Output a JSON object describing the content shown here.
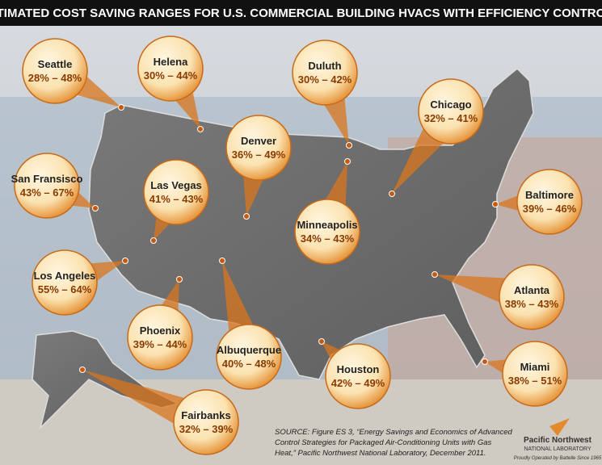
{
  "header": {
    "title": "ESTIMATED COST SAVING RANGES FOR U.S. COMMERCIAL BUILDING HVACS WITH EFFICIENCY CONTROLS"
  },
  "callouts": [
    {
      "city": "Seattle",
      "range": "28% – 48%"
    },
    {
      "city": "Helena",
      "range": "30% – 44%"
    },
    {
      "city": "Duluth",
      "range": "30% – 42%"
    },
    {
      "city": "Chicago",
      "range": "32% – 41%"
    },
    {
      "city": "Denver",
      "range": "36% – 49%"
    },
    {
      "city": "San Fransisco",
      "range": "43% – 67%"
    },
    {
      "city": "Las Vegas",
      "range": "41% – 43%"
    },
    {
      "city": "Minneapolis",
      "range": "34% – 43%"
    },
    {
      "city": "Baltimore",
      "range": "39% – 46%"
    },
    {
      "city": "Los Angeles",
      "range": "55% – 64%"
    },
    {
      "city": "Atlanta",
      "range": "38% – 43%"
    },
    {
      "city": "Phoenix",
      "range": "39% – 44%"
    },
    {
      "city": "Albuquerque",
      "range": "40% – 48%"
    },
    {
      "city": "Houston",
      "range": "42% – 49%"
    },
    {
      "city": "Miami",
      "range": "38% – 51%"
    },
    {
      "city": "Fairbanks",
      "range": "32% – 39%"
    }
  ],
  "source": {
    "lines": [
      "SOURCE: Figure ES 3, “Energy Savings and Economics of Advanced",
      "Control Strategies for Packaged Air-Conditioning Units with Gas",
      "Heat,” Pacific Northwest National Laboratory, December 2011."
    ]
  },
  "logo": {
    "name": "Pacific Northwest",
    "subname": "NATIONAL LABORATORY",
    "tagline": "Proudly Operated by Battelle Since 1965"
  }
}
